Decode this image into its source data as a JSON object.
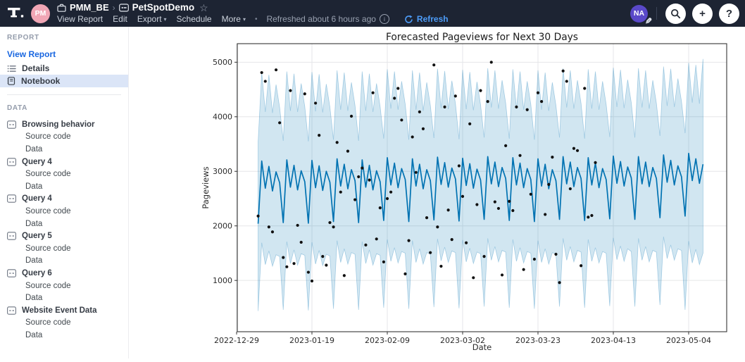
{
  "topbar": {
    "workspace_avatar": "PM",
    "breadcrumb": {
      "workspace": "PMM_BE",
      "report": "PetSpotDemo"
    },
    "menu_items": [
      {
        "label": "View Report",
        "caret": false
      },
      {
        "label": "Edit",
        "caret": false
      },
      {
        "label": "Export",
        "caret": true
      },
      {
        "label": "Schedule",
        "caret": false
      },
      {
        "label": "More",
        "caret": true
      }
    ],
    "separator_dot": "•",
    "refreshed_text": "Refreshed about 6 hours ago",
    "refresh_label": "Refresh",
    "user_avatar": "NA",
    "icons": {
      "star": "☆",
      "caret": "▾",
      "pencil": "✎",
      "info": "i",
      "add": "+",
      "help": "?"
    }
  },
  "sidebar": {
    "report_header": "REPORT",
    "view_report_label": "View Report",
    "report_items": [
      {
        "label": "Details",
        "icon": "list-icon",
        "selected": false
      },
      {
        "label": "Notebook",
        "icon": "notebook-icon",
        "selected": true
      }
    ],
    "data_header": "DATA",
    "data_sources": [
      {
        "label": "Browsing behavior",
        "children": [
          "Source code",
          "Data"
        ]
      },
      {
        "label": "Query 4",
        "children": [
          "Source code",
          "Data"
        ]
      },
      {
        "label": "Query 4",
        "children": [
          "Source code",
          "Data"
        ]
      },
      {
        "label": "Query 5",
        "children": [
          "Source code",
          "Data"
        ]
      },
      {
        "label": "Query 6",
        "children": [
          "Source code",
          "Data"
        ]
      },
      {
        "label": "Website Event Data",
        "children": [
          "Source code",
          "Data"
        ]
      }
    ]
  },
  "chart_data": {
    "type": "line",
    "title": "Forecasted Pageviews for Next 30 Days",
    "xlabel": "Date",
    "ylabel": "Pageviews",
    "x_tick_labels": [
      "2022-12-29",
      "2023-01-19",
      "2023-02-09",
      "2023-03-02",
      "2023-03-23",
      "2023-04-13",
      "2023-05-04"
    ],
    "x_tick_day_offsets": [
      0,
      21,
      42,
      63,
      84,
      105,
      126
    ],
    "y_ticks": [
      1000,
      2000,
      3000,
      4000,
      5000
    ],
    "ylim": [
      60,
      5340
    ],
    "grid": true,
    "legend": "none",
    "start_date": "2023-01-04",
    "history_end_date": "2023-04-08",
    "forecast_days": 30,
    "series_start_day_offset": 6,
    "forecast": {
      "name": "Forecast (yhat)",
      "color": "#0072B2",
      "values": [
        2040,
        3190,
        2690,
        3090,
        2640,
        2990,
        2790,
        2060,
        3210,
        2710,
        3110,
        2660,
        3010,
        2810,
        2050,
        3200,
        2700,
        3100,
        2650,
        3000,
        2800,
        2080,
        3230,
        2730,
        3130,
        2680,
        3030,
        2830,
        2060,
        3210,
        2710,
        3110,
        2660,
        3010,
        2810,
        2100,
        3250,
        2750,
        3150,
        2700,
        3050,
        2850,
        2080,
        3230,
        2730,
        3130,
        2680,
        3030,
        2830,
        2110,
        3260,
        2760,
        3160,
        2710,
        3060,
        2860,
        2090,
        3240,
        2740,
        3140,
        2690,
        3040,
        2840,
        2120,
        3270,
        2770,
        3170,
        2720,
        3070,
        2870,
        2100,
        3250,
        2750,
        3150,
        2700,
        3050,
        2850,
        2080,
        3230,
        2730,
        3130,
        2680,
        3030,
        2830,
        2120,
        3270,
        2770,
        3170,
        2720,
        3070,
        2870,
        2100,
        3250,
        2750,
        3150,
        2700,
        3050,
        2850,
        2130,
        3280,
        2780,
        3180,
        2730,
        3080,
        2880,
        2120,
        3270,
        2770,
        3170,
        2720,
        3070,
        2870,
        2150,
        3300,
        2800,
        3200,
        2750,
        3100,
        2900,
        2180,
        3330,
        2830,
        3230,
        2780,
        3130
      ]
    },
    "band": {
      "name": "Uncertainty interval",
      "fill": "rgba(0,114,178,0.18)",
      "edge": "rgba(0,114,178,0.30)",
      "upper": [
        3540,
        4810,
        4090,
        4770,
        4070,
        4590,
        4170,
        3560,
        4830,
        4110,
        4790,
        4090,
        4610,
        4190,
        3550,
        4820,
        4100,
        4780,
        4080,
        4600,
        4180,
        3580,
        4850,
        4130,
        4810,
        4110,
        4630,
        4210,
        3560,
        4830,
        4110,
        4790,
        4090,
        4610,
        4190,
        3600,
        4870,
        4150,
        4830,
        4130,
        4650,
        4230,
        3580,
        4850,
        4130,
        4810,
        4110,
        4630,
        4210,
        3610,
        4880,
        4160,
        4840,
        4140,
        4660,
        4240,
        3590,
        4860,
        4140,
        4820,
        4120,
        4640,
        4220,
        3620,
        4890,
        4170,
        4850,
        4150,
        4670,
        4250,
        3600,
        4870,
        4150,
        4830,
        4130,
        4650,
        4230,
        3580,
        4850,
        4130,
        4810,
        4110,
        4630,
        4210,
        3620,
        4890,
        4170,
        4850,
        4150,
        4670,
        4250,
        3600,
        4870,
        4150,
        4830,
        4130,
        4650,
        4230,
        3630,
        4900,
        4180,
        4860,
        4160,
        4680,
        4260,
        3620,
        4890,
        4170,
        4850,
        4150,
        4670,
        4250,
        3650,
        4920,
        4200,
        4880,
        4180,
        4700,
        4280,
        3700,
        4990,
        4260,
        4950,
        4240,
        5060
      ],
      "lower": [
        440,
        1690,
        1290,
        1540,
        1260,
        1470,
        1440,
        460,
        1710,
        1310,
        1560,
        1280,
        1490,
        1460,
        450,
        1700,
        1300,
        1550,
        1270,
        1480,
        1450,
        480,
        1730,
        1330,
        1580,
        1300,
        1510,
        1480,
        460,
        1710,
        1310,
        1560,
        1280,
        1490,
        1460,
        500,
        1750,
        1350,
        1600,
        1320,
        1530,
        1500,
        480,
        1730,
        1330,
        1580,
        1300,
        1510,
        1480,
        510,
        1760,
        1360,
        1610,
        1330,
        1540,
        1510,
        490,
        1740,
        1340,
        1590,
        1310,
        1520,
        1490,
        520,
        1770,
        1370,
        1620,
        1340,
        1550,
        1520,
        500,
        1750,
        1350,
        1600,
        1320,
        1530,
        1500,
        480,
        1730,
        1330,
        1580,
        1300,
        1510,
        1480,
        520,
        1770,
        1370,
        1620,
        1340,
        1550,
        1520,
        500,
        1750,
        1350,
        1600,
        1320,
        1530,
        1500,
        530,
        1780,
        1380,
        1630,
        1350,
        1580,
        1530,
        520,
        1770,
        1370,
        1620,
        1340,
        1550,
        1520,
        550,
        1800,
        1400,
        1650,
        1370,
        1580,
        1550,
        460,
        1720,
        1320,
        1570,
        1290,
        1500
      ]
    },
    "actuals": {
      "name": "Observed pageviews",
      "color": "#111111",
      "marker": "point",
      "values": [
        2180,
        4810,
        4650,
        1980,
        1890,
        4860,
        3890,
        1420,
        1250,
        4480,
        1310,
        2010,
        1700,
        4420,
        1150,
        990,
        4250,
        3660,
        1440,
        1280,
        2060,
        1980,
        3530,
        2620,
        1090,
        3370,
        4010,
        2480,
        2900,
        3060,
        1650,
        2840,
        4440,
        1760,
        2330,
        1340,
        2500,
        2620,
        4340,
        4520,
        3940,
        1120,
        1730,
        3630,
        2980,
        4090,
        3780,
        2150,
        1510,
        4950,
        1980,
        1260,
        4180,
        2290,
        1750,
        4380,
        3100,
        2540,
        1690,
        3870,
        1050,
        2390,
        4480,
        1440,
        4280,
        5000,
        2440,
        2320,
        1100,
        3470,
        2450,
        2280,
        4180,
        3290,
        1200,
        4130,
        2580,
        1390,
        4440,
        4280,
        2210,
        2760,
        3260,
        1480,
        960,
        4840,
        4650,
        2680,
        3420,
        3380,
        1270,
        4520,
        2160,
        2190,
        3160
      ]
    }
  }
}
